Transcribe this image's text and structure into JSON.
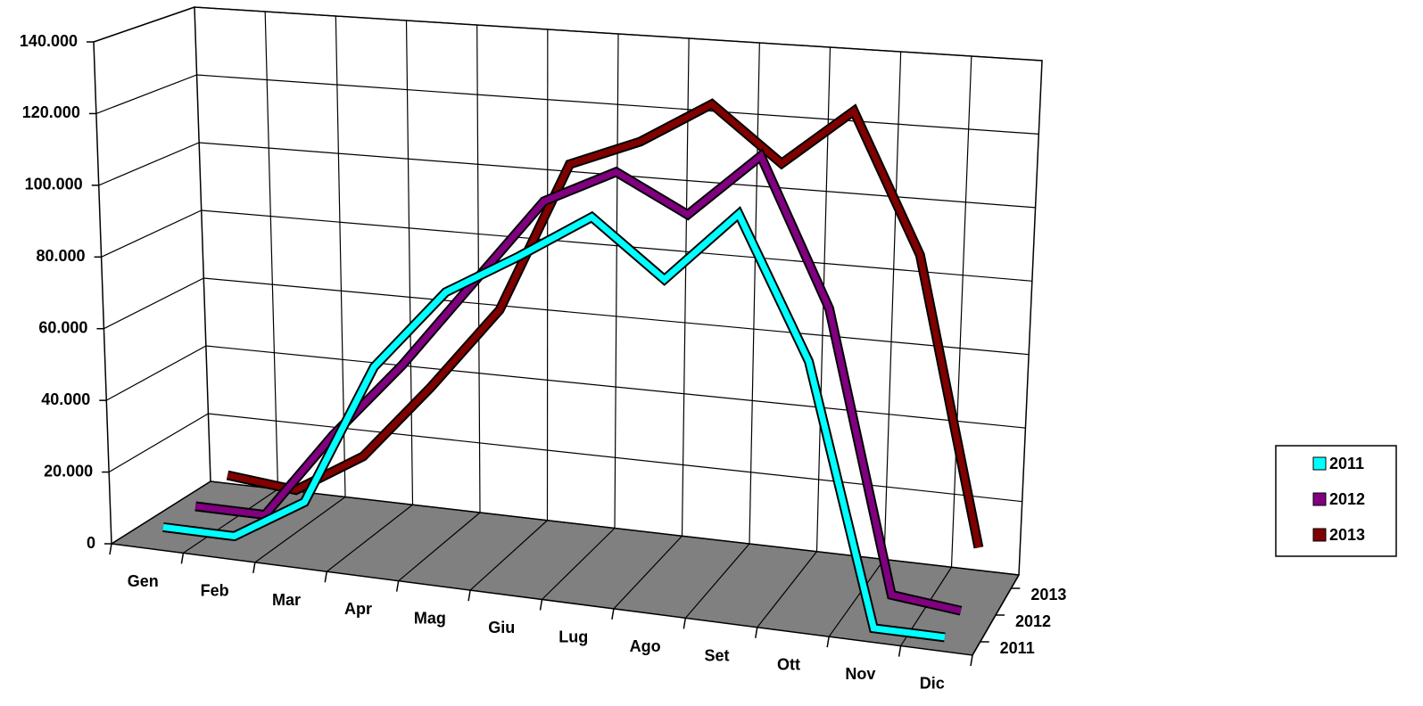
{
  "chart_data": {
    "type": "line3d",
    "categories": [
      "Gen",
      "Feb",
      "Mar",
      "Apr",
      "Mag",
      "Giu",
      "Lug",
      "Ago",
      "Set",
      "Ott",
      "Nov",
      "Dic"
    ],
    "series": [
      {
        "name": "2011",
        "color": "#00ffff",
        "values": [
          3000,
          3000,
          15000,
          55000,
          78000,
          90000,
          103000,
          88000,
          108000,
          70000,
          0,
          0
        ]
      },
      {
        "name": "2012",
        "color": "#800080",
        "values": [
          3000,
          3000,
          28000,
          50000,
          75000,
          100000,
          110000,
          100000,
          118000,
          78000,
          2000,
          0
        ]
      },
      {
        "name": "2013",
        "color": "#800000",
        "values": [
          6000,
          4000,
          16000,
          38000,
          62000,
          105000,
          113000,
          125000,
          110000,
          126000,
          88000,
          10000
        ]
      }
    ],
    "ylim": [
      0,
      140000
    ],
    "yticks": [
      0,
      {
        "value": 20000,
        "label": "20.000"
      },
      {
        "value": 40000,
        "label": "40.000"
      },
      {
        "value": 60000,
        "label": "60.000"
      },
      {
        "value": 80000,
        "label": "80.000"
      },
      {
        "value": 100000,
        "label": "100.000"
      },
      {
        "value": 120000,
        "label": "120.000"
      },
      {
        "value": 140000,
        "label": "140.000"
      }
    ],
    "grid": true,
    "legend": "right"
  }
}
